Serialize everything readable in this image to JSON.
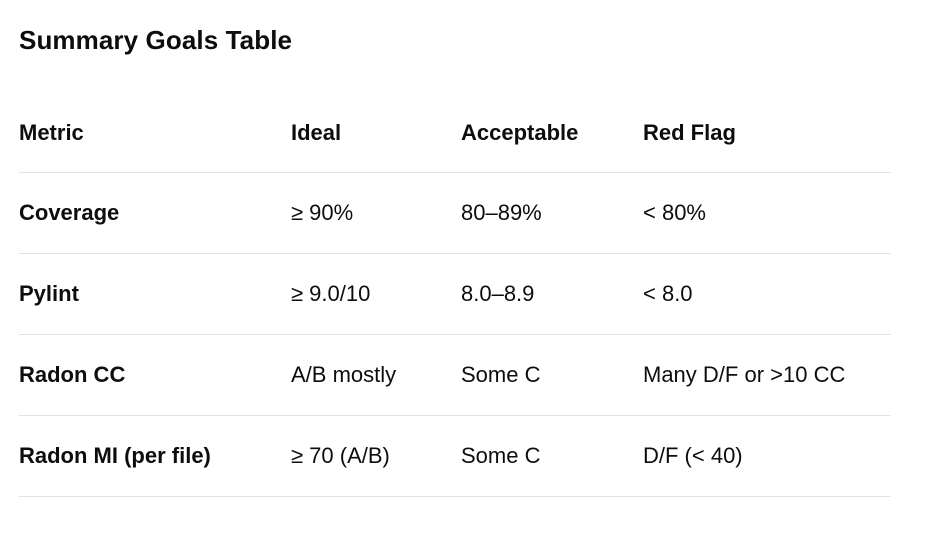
{
  "title": "Summary Goals Table",
  "table": {
    "headers": [
      "Metric",
      "Ideal",
      "Acceptable",
      "Red Flag"
    ],
    "rows": [
      [
        "Coverage",
        "≥ 90%",
        "80–89%",
        "< 80%"
      ],
      [
        "Pylint",
        "≥ 9.0/10",
        "8.0–8.9",
        "< 8.0"
      ],
      [
        "Radon CC",
        "A/B mostly",
        "Some C",
        "Many D/F or >10 CC"
      ],
      [
        "Radon MI (per file)",
        "≥ 70 (A/B)",
        "Some C",
        "D/F (< 40)"
      ]
    ]
  }
}
